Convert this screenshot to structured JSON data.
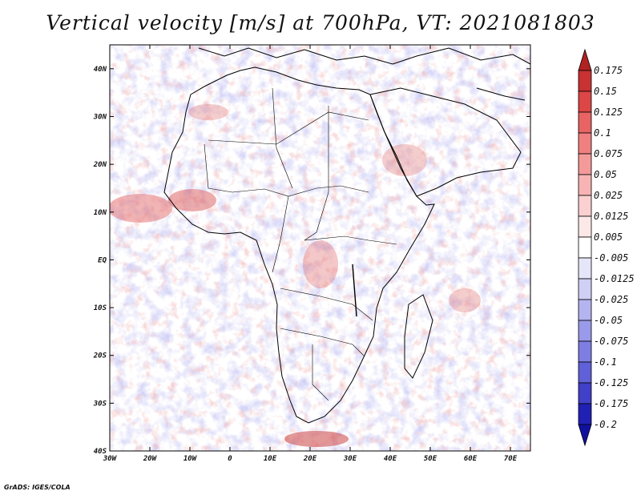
{
  "title": "Vertical velocity [m/s] at 700hPa, VT: 2021081803",
  "credit": "GrADS: IGES/COLA",
  "axes": {
    "lat_labels": [
      "40N",
      "30N",
      "20N",
      "10N",
      "EQ",
      "10S",
      "20S",
      "30S",
      "40S"
    ],
    "lat_values": [
      40,
      30,
      20,
      10,
      0,
      -10,
      -20,
      -30,
      -40
    ],
    "lon_labels": [
      "30W",
      "20W",
      "10W",
      "0",
      "10E",
      "20E",
      "30E",
      "40E",
      "50E",
      "60E",
      "70E"
    ],
    "lon_values": [
      -30,
      -20,
      -10,
      0,
      10,
      20,
      30,
      40,
      50,
      60,
      70
    ],
    "lon_range": [
      -30,
      75
    ],
    "lat_range": [
      -40,
      45
    ]
  },
  "colorbar": {
    "labels": [
      "0.175",
      "0.15",
      "0.125",
      "0.1",
      "0.075",
      "0.05",
      "0.025",
      "0.0125",
      "0.005",
      "-0.005",
      "-0.0125",
      "-0.025",
      "-0.05",
      "-0.075",
      "-0.1",
      "-0.125",
      "-0.175",
      "-0.2"
    ],
    "colors": [
      "#b22222",
      "#c83232",
      "#dc4646",
      "#e86464",
      "#f08080",
      "#f49a9a",
      "#f8b4b4",
      "#fbd0d0",
      "#fde8e8",
      "#ffffff",
      "#e6e6fb",
      "#d0d0f6",
      "#b4b4f0",
      "#9a9aea",
      "#7d7de2",
      "#6060d8",
      "#4040c8",
      "#2020b4",
      "#1010a0"
    ]
  },
  "colors": {
    "background": "#ffffff",
    "field_red": "#e07070",
    "field_blue": "#8888e0",
    "coast": "#000000"
  }
}
